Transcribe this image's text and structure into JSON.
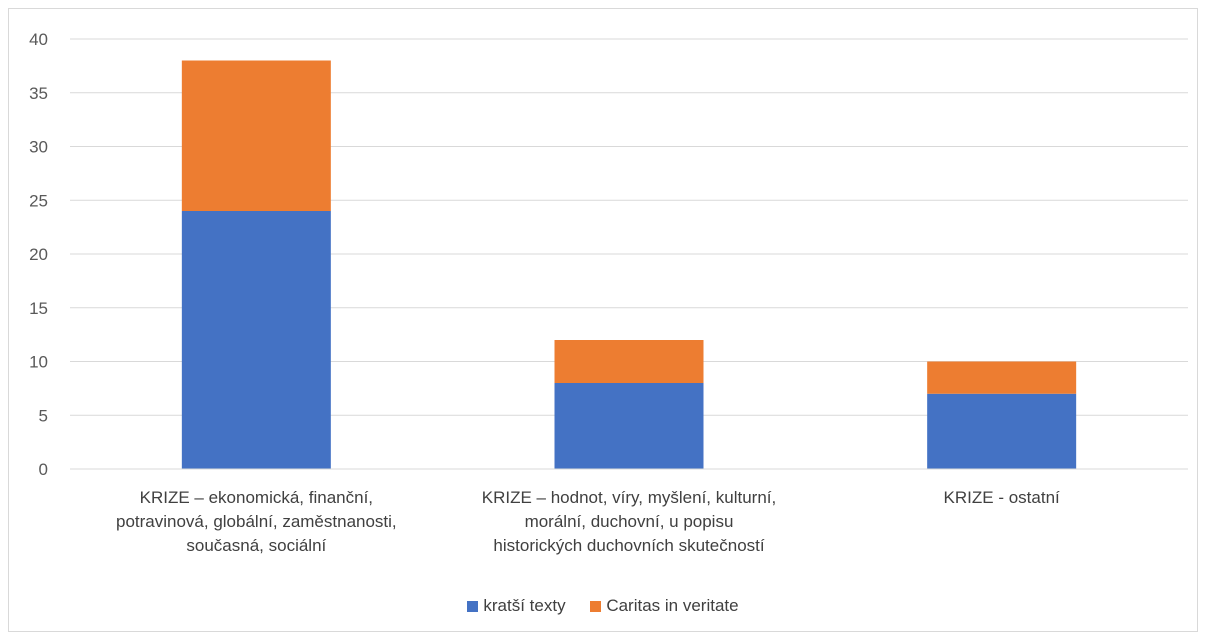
{
  "chart_data": {
    "type": "bar",
    "stacked": true,
    "title": "",
    "xlabel": "",
    "ylabel": "",
    "ylim": [
      0,
      40
    ],
    "yticks": [
      0,
      5,
      10,
      15,
      20,
      25,
      30,
      35,
      40
    ],
    "yticks_text": [
      "0",
      "5",
      "10",
      "15",
      "20",
      "25",
      "30",
      "35",
      "40"
    ],
    "grid": true,
    "legend_position": "bottom",
    "categories": [
      [
        "KRIZE – ekonomická, finanční,",
        "potravinová, globální, zaměstnanosti,",
        "současná, sociální"
      ],
      [
        "KRIZE – hodnot, víry, myšlení, kulturní,",
        "morální, duchovní, u popisu",
        "historických duchovních skutečností"
      ],
      [
        "KRIZE - ostatní"
      ]
    ],
    "series": [
      {
        "name": "kratší texty",
        "color": "#4472c4",
        "values": [
          24,
          8,
          7
        ]
      },
      {
        "name": "Caritas in veritate",
        "color": "#ed7d31",
        "values": [
          14,
          4,
          3
        ]
      }
    ]
  }
}
